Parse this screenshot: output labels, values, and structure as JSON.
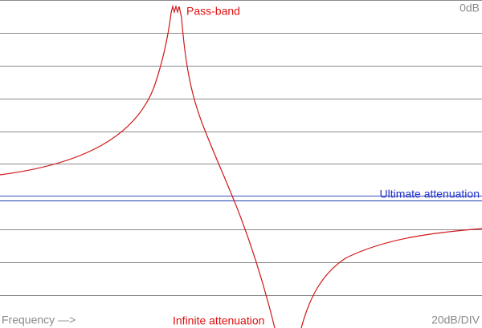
{
  "labels": {
    "top_right": "0dB",
    "pass_band": "Pass-band",
    "ultimate": "Ultimate attenuation",
    "infinite": "Infinite attenuation",
    "x_axis": "Frequency —>",
    "scale": "20dB/DIV"
  }
}
